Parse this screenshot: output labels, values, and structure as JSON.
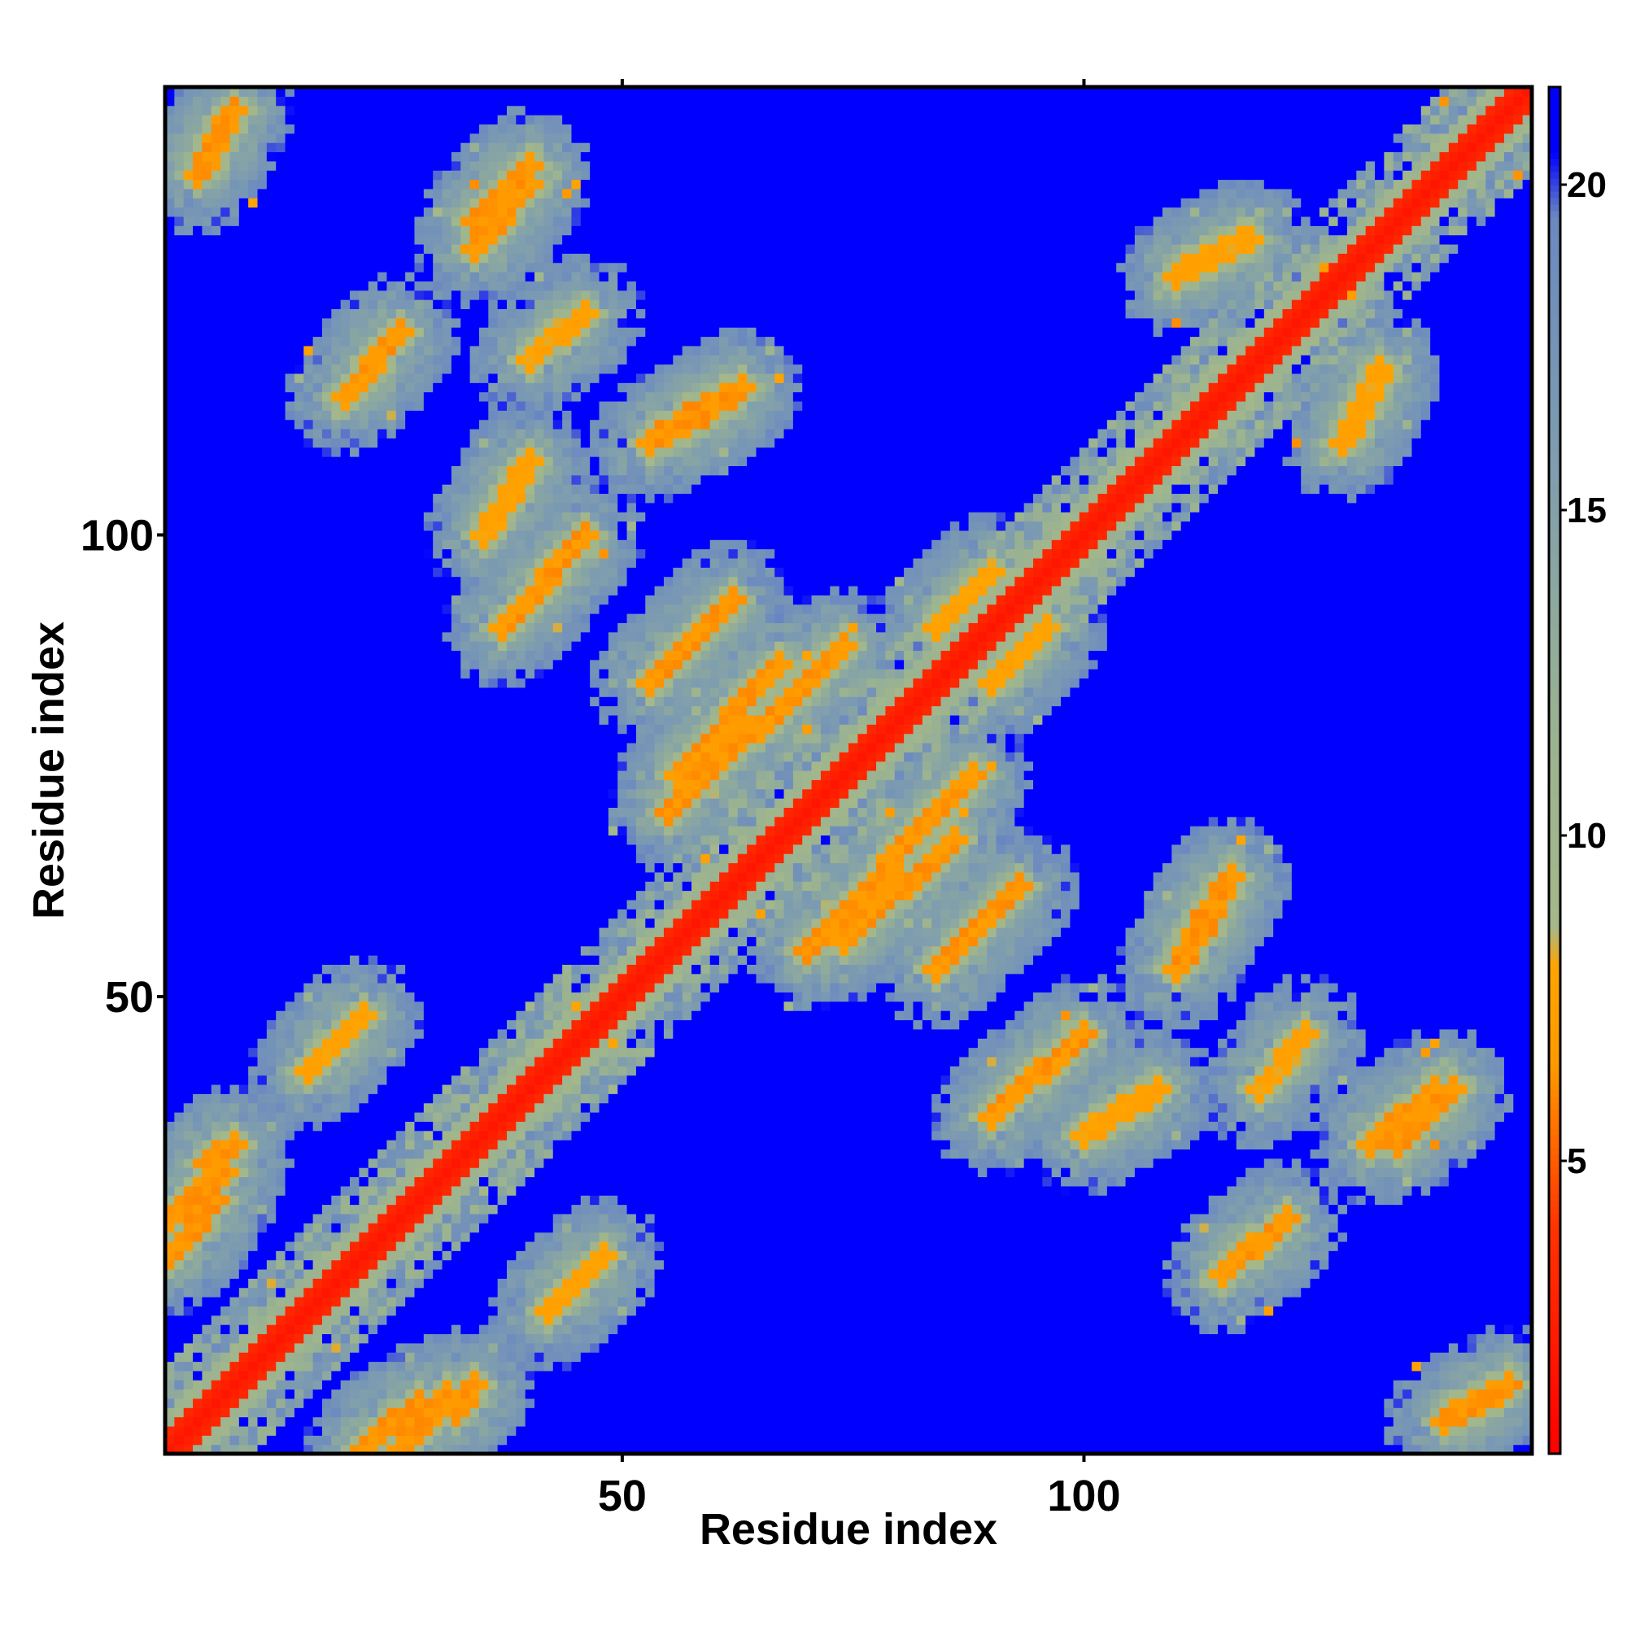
{
  "chart_data": {
    "type": "heatmap",
    "title": "",
    "xlabel": "Residue index",
    "ylabel": "Residue index",
    "n_residues": 148,
    "xlim": [
      1,
      148
    ],
    "ylim": [
      1,
      148
    ],
    "x_ticks": [
      50,
      100
    ],
    "y_ticks": [
      50,
      100
    ],
    "colorbar": {
      "ticks": [
        5,
        10,
        15,
        20
      ],
      "range": [
        0.5,
        21.5
      ],
      "stops": [
        {
          "value": 0.5,
          "color": "#ff0000"
        },
        {
          "value": 4.0,
          "color": "#ff3300"
        },
        {
          "value": 6.5,
          "color": "#ff9a00"
        },
        {
          "value": 8.0,
          "color": "#ffa500"
        },
        {
          "value": 8.6,
          "color": "#a5b88a"
        },
        {
          "value": 11.5,
          "color": "#9bb390"
        },
        {
          "value": 16.0,
          "color": "#7d9cb0"
        },
        {
          "value": 19.5,
          "color": "#6b89c0"
        },
        {
          "value": 20.5,
          "color": "#0000ff"
        },
        {
          "value": 21.5,
          "color": "#0000ff"
        }
      ]
    },
    "description_of_structure": {
      "diagonal_band_value": 2,
      "background_value": 21,
      "contact_segments": [
        {
          "i": [
            1,
            6
          ],
          "j": [
            22,
            28
          ],
          "value": 6
        },
        {
          "i": [
            5,
            8
          ],
          "j": [
            32,
            34
          ],
          "value": 6
        },
        {
          "i": [
            26,
            31
          ],
          "j": [
            1,
            7
          ],
          "value": 6
        },
        {
          "i": [
            34,
            40
          ],
          "j": [
            131,
            138
          ],
          "value": 6
        },
        {
          "i": [
            40,
            46
          ],
          "j": [
            119,
            124
          ],
          "value": 7
        },
        {
          "i": [
            42,
            48
          ],
          "j": [
            16,
            22
          ],
          "value": 7
        },
        {
          "i": [
            53,
            62
          ],
          "j": [
            84,
            93
          ],
          "value": 6
        },
        {
          "i": [
            56,
            67
          ],
          "j": [
            74,
            86
          ],
          "value": 6
        },
        {
          "i": [
            57,
            63
          ],
          "j": [
            112,
            116
          ],
          "value": 6
        },
        {
          "i": [
            70,
            88
          ],
          "j": [
            55,
            74
          ],
          "value": 6
        },
        {
          "i": [
            84,
            90
          ],
          "j": [
            90,
            96
          ],
          "value": 7
        },
        {
          "i": [
            90,
            100
          ],
          "j": [
            37,
            46
          ],
          "value": 6
        },
        {
          "i": [
            100,
            108
          ],
          "j": [
            35,
            40
          ],
          "value": 7
        },
        {
          "i": [
            110,
            115
          ],
          "j": [
            53,
            61
          ],
          "value": 6
        },
        {
          "i": [
            115,
            122
          ],
          "j": [
            20,
            26
          ],
          "value": 6
        },
        {
          "i": [
            128,
            132
          ],
          "j": [
            110,
            118
          ],
          "value": 7
        },
        {
          "i": [
            134,
            140
          ],
          "j": [
            34,
            40
          ],
          "value": 6
        },
        {
          "i": [
            139,
            146
          ],
          "j": [
            4,
            8
          ],
          "value": 6
        }
      ]
    }
  }
}
